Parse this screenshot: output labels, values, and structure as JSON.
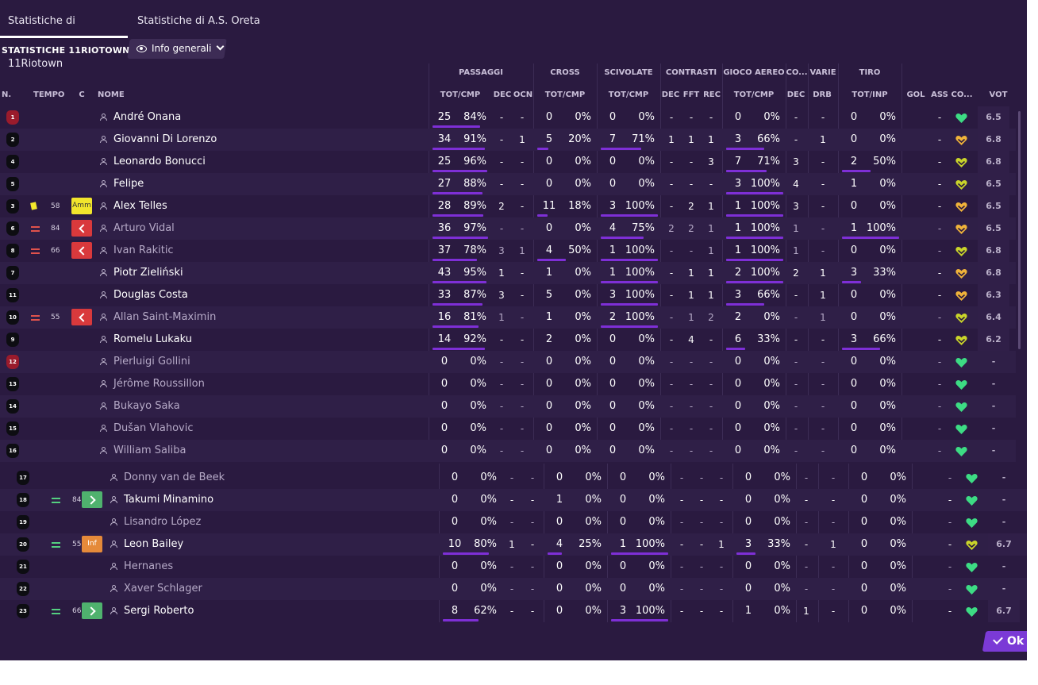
{
  "tabs": [
    "Statistiche di 11Riotown",
    "Statistiche di A.S. Oreta"
  ],
  "section_title": "STATISTICHE 11RIOTOWN",
  "view_button": "Info generali",
  "headers": {
    "groups": [
      "PASSAGGI",
      "CROSS",
      "SCIVOLATE",
      "CONTRASTI",
      "GIOCO AEREO",
      "CO...",
      "VARIE",
      "TIRO"
    ],
    "cols": [
      "N.",
      "TEMPO",
      "C",
      "NOME",
      "TOT/CMP",
      "DEC",
      "OCN",
      "TOT/CMP",
      "TOT/CMP",
      "DEC",
      "FFT",
      "REC",
      "TOT/CMP",
      "DEC",
      "DRB",
      "TOT/INP",
      "GOL",
      "ASS",
      "CO...",
      "VOT"
    ]
  },
  "ok_label": "Ok",
  "colors": {
    "background": "#2a1a40",
    "accent": "#7e2fd6",
    "heart_green": "#3ddc84",
    "heart_yellow": "#c9d42a",
    "heart_orange": "#f0b33a"
  },
  "players": [
    {
      "num": "1",
      "gk": true,
      "time": "",
      "card": "",
      "badge": "",
      "badge_text": "",
      "name": "André Onana",
      "active": true,
      "pas_t": "25",
      "pas_p": "84%",
      "pas_f": 0.84,
      "pdec": "-",
      "pocn": "-",
      "cr_t": "0",
      "cr_p": "0%",
      "cr_f": 0,
      "sc_t": "0",
      "sc_p": "0%",
      "sc_f": 0,
      "cdec": "-",
      "cfft": "-",
      "crec": "-",
      "ga_t": "0",
      "ga_p": "0%",
      "ga_f": 0,
      "codec": "-",
      "drb": "-",
      "ti_t": "0",
      "ti_p": "0%",
      "ti_f": 0,
      "gol": "",
      "ass": "-",
      "heart": "green",
      "vot": "6.5"
    },
    {
      "num": "2",
      "gk": false,
      "time": "",
      "card": "",
      "badge": "",
      "badge_text": "",
      "name": "Giovanni Di Lorenzo",
      "active": true,
      "pas_t": "34",
      "pas_p": "91%",
      "pas_f": 0.91,
      "pdec": "-",
      "pocn": "1",
      "cr_t": "5",
      "cr_p": "20%",
      "cr_f": 0.2,
      "sc_t": "7",
      "sc_p": "71%",
      "sc_f": 0.71,
      "cdec": "1",
      "cfft": "1",
      "crec": "1",
      "ga_t": "3",
      "ga_p": "66%",
      "ga_f": 0.66,
      "codec": "-",
      "drb": "1",
      "ti_t": "0",
      "ti_p": "0%",
      "ti_f": 0,
      "gol": "",
      "ass": "-",
      "heart": "orange",
      "vot": "6.8"
    },
    {
      "num": "4",
      "gk": false,
      "time": "",
      "card": "",
      "badge": "",
      "badge_text": "",
      "name": "Leonardo Bonucci",
      "active": true,
      "pas_t": "25",
      "pas_p": "96%",
      "pas_f": 0.96,
      "pdec": "-",
      "pocn": "-",
      "cr_t": "0",
      "cr_p": "0%",
      "cr_f": 0,
      "sc_t": "0",
      "sc_p": "0%",
      "sc_f": 0,
      "cdec": "-",
      "cfft": "-",
      "crec": "3",
      "ga_t": "7",
      "ga_p": "71%",
      "ga_f": 0.71,
      "codec": "3",
      "drb": "-",
      "ti_t": "2",
      "ti_p": "50%",
      "ti_f": 0.5,
      "gol": "",
      "ass": "-",
      "heart": "yellow",
      "vot": "6.8"
    },
    {
      "num": "5",
      "gk": false,
      "time": "",
      "card": "",
      "badge": "",
      "badge_text": "",
      "name": "Felipe",
      "active": true,
      "pas_t": "27",
      "pas_p": "88%",
      "pas_f": 0.88,
      "pdec": "-",
      "pocn": "-",
      "cr_t": "0",
      "cr_p": "0%",
      "cr_f": 0,
      "sc_t": "0",
      "sc_p": "0%",
      "sc_f": 0,
      "cdec": "-",
      "cfft": "-",
      "crec": "-",
      "ga_t": "3",
      "ga_p": "100%",
      "ga_f": 1,
      "codec": "4",
      "drb": "-",
      "ti_t": "1",
      "ti_p": "0%",
      "ti_f": 0,
      "gol": "",
      "ass": "-",
      "heart": "yellow",
      "vot": "6.5"
    },
    {
      "num": "3",
      "gk": false,
      "time": "58",
      "card": "yellow",
      "badge": "amm",
      "badge_text": "Amm",
      "name": "Alex Telles",
      "active": true,
      "pas_t": "28",
      "pas_p": "89%",
      "pas_f": 0.89,
      "pdec": "2",
      "pocn": "-",
      "cr_t": "11",
      "cr_p": "18%",
      "cr_f": 0.18,
      "sc_t": "3",
      "sc_p": "100%",
      "sc_f": 1,
      "cdec": "-",
      "cfft": "2",
      "crec": "1",
      "ga_t": "1",
      "ga_p": "100%",
      "ga_f": 1,
      "codec": "3",
      "drb": "-",
      "ti_t": "0",
      "ti_p": "0%",
      "ti_f": 0,
      "gol": "",
      "ass": "-",
      "heart": "orange",
      "vot": "6.5"
    },
    {
      "num": "6",
      "gk": false,
      "time": "84",
      "card": "out",
      "badge": "out",
      "badge_text": "",
      "name": "Arturo Vidal",
      "active": false,
      "pas_t": "36",
      "pas_p": "97%",
      "pas_f": 0.97,
      "pdec": "-",
      "pocn": "-",
      "cr_t": "0",
      "cr_p": "0%",
      "cr_f": 0,
      "sc_t": "4",
      "sc_p": "75%",
      "sc_f": 0.75,
      "cdec": "2",
      "cfft": "2",
      "crec": "1",
      "ga_t": "1",
      "ga_p": "100%",
      "ga_f": 1,
      "codec": "1",
      "drb": "-",
      "ti_t": "1",
      "ti_p": "100%",
      "ti_f": 1,
      "gol": "",
      "ass": "-",
      "heart": "orange",
      "vot": "6.5"
    },
    {
      "num": "8",
      "gk": false,
      "time": "66",
      "card": "out",
      "badge": "out",
      "badge_text": "",
      "name": "Ivan Rakitic",
      "active": false,
      "pas_t": "37",
      "pas_p": "78%",
      "pas_f": 0.78,
      "pdec": "3",
      "pocn": "1",
      "cr_t": "4",
      "cr_p": "50%",
      "cr_f": 0.5,
      "sc_t": "1",
      "sc_p": "100%",
      "sc_f": 1,
      "cdec": "-",
      "cfft": "-",
      "crec": "1",
      "ga_t": "1",
      "ga_p": "100%",
      "ga_f": 1,
      "codec": "1",
      "drb": "-",
      "ti_t": "0",
      "ti_p": "0%",
      "ti_f": 0,
      "gol": "",
      "ass": "-",
      "heart": "yellow",
      "vot": "6.8"
    },
    {
      "num": "7",
      "gk": false,
      "time": "",
      "card": "",
      "badge": "",
      "badge_text": "",
      "name": "Piotr Zieliński",
      "active": true,
      "pas_t": "43",
      "pas_p": "95%",
      "pas_f": 0.95,
      "pdec": "1",
      "pocn": "-",
      "cr_t": "1",
      "cr_p": "0%",
      "cr_f": 0,
      "sc_t": "1",
      "sc_p": "100%",
      "sc_f": 1,
      "cdec": "-",
      "cfft": "1",
      "crec": "1",
      "ga_t": "2",
      "ga_p": "100%",
      "ga_f": 1,
      "codec": "2",
      "drb": "1",
      "ti_t": "3",
      "ti_p": "33%",
      "ti_f": 0.33,
      "gol": "",
      "ass": "-",
      "heart": "orange",
      "vot": "6.8"
    },
    {
      "num": "11",
      "gk": false,
      "time": "",
      "card": "",
      "badge": "",
      "badge_text": "",
      "name": "Douglas Costa",
      "active": true,
      "pas_t": "33",
      "pas_p": "87%",
      "pas_f": 0.87,
      "pdec": "3",
      "pocn": "-",
      "cr_t": "5",
      "cr_p": "0%",
      "cr_f": 0,
      "sc_t": "3",
      "sc_p": "100%",
      "sc_f": 1,
      "cdec": "-",
      "cfft": "1",
      "crec": "1",
      "ga_t": "3",
      "ga_p": "66%",
      "ga_f": 0.66,
      "codec": "-",
      "drb": "1",
      "ti_t": "0",
      "ti_p": "0%",
      "ti_f": 0,
      "gol": "",
      "ass": "-",
      "heart": "orange",
      "vot": "6.3"
    },
    {
      "num": "10",
      "gk": false,
      "time": "55",
      "card": "out",
      "badge": "out",
      "badge_text": "",
      "name": "Allan Saint-Maximin",
      "active": false,
      "pas_t": "16",
      "pas_p": "81%",
      "pas_f": 0.81,
      "pdec": "1",
      "pocn": "-",
      "cr_t": "1",
      "cr_p": "0%",
      "cr_f": 0,
      "sc_t": "2",
      "sc_p": "100%",
      "sc_f": 1,
      "cdec": "-",
      "cfft": "1",
      "crec": "2",
      "ga_t": "2",
      "ga_p": "0%",
      "ga_f": 0,
      "codec": "-",
      "drb": "1",
      "ti_t": "0",
      "ti_p": "0%",
      "ti_f": 0,
      "gol": "",
      "ass": "-",
      "heart": "yellow",
      "vot": "6.4"
    },
    {
      "num": "9",
      "gk": false,
      "time": "",
      "card": "",
      "badge": "",
      "badge_text": "",
      "name": "Romelu Lukaku",
      "active": true,
      "pas_t": "14",
      "pas_p": "92%",
      "pas_f": 0.92,
      "pdec": "-",
      "pocn": "-",
      "cr_t": "2",
      "cr_p": "0%",
      "cr_f": 0,
      "sc_t": "0",
      "sc_p": "0%",
      "sc_f": 0,
      "cdec": "-",
      "cfft": "4",
      "crec": "-",
      "ga_t": "6",
      "ga_p": "33%",
      "ga_f": 0.33,
      "codec": "-",
      "drb": "-",
      "ti_t": "3",
      "ti_p": "66%",
      "ti_f": 0.66,
      "gol": "",
      "ass": "-",
      "heart": "yellow",
      "vot": "6.2"
    },
    {
      "num": "12",
      "gk": true,
      "time": "",
      "card": "",
      "badge": "",
      "badge_text": "",
      "name": "Pierluigi Gollini",
      "active": false,
      "pas_t": "0",
      "pas_p": "0%",
      "pas_f": 0,
      "pdec": "-",
      "pocn": "-",
      "cr_t": "0",
      "cr_p": "0%",
      "cr_f": 0,
      "sc_t": "0",
      "sc_p": "0%",
      "sc_f": 0,
      "cdec": "-",
      "cfft": "-",
      "crec": "-",
      "ga_t": "0",
      "ga_p": "0%",
      "ga_f": 0,
      "codec": "-",
      "drb": "-",
      "ti_t": "0",
      "ti_p": "0%",
      "ti_f": 0,
      "gol": "",
      "ass": "-",
      "heart": "green",
      "vot": "-"
    },
    {
      "num": "13",
      "gk": false,
      "time": "",
      "card": "",
      "badge": "",
      "badge_text": "",
      "name": "Jérôme Roussillon",
      "active": false,
      "pas_t": "0",
      "pas_p": "0%",
      "pas_f": 0,
      "pdec": "-",
      "pocn": "-",
      "cr_t": "0",
      "cr_p": "0%",
      "cr_f": 0,
      "sc_t": "0",
      "sc_p": "0%",
      "sc_f": 0,
      "cdec": "-",
      "cfft": "-",
      "crec": "-",
      "ga_t": "0",
      "ga_p": "0%",
      "ga_f": 0,
      "codec": "-",
      "drb": "-",
      "ti_t": "0",
      "ti_p": "0%",
      "ti_f": 0,
      "gol": "",
      "ass": "-",
      "heart": "green",
      "vot": "-"
    },
    {
      "num": "14",
      "gk": false,
      "time": "",
      "card": "",
      "badge": "",
      "badge_text": "",
      "name": "Bukayo Saka",
      "active": false,
      "pas_t": "0",
      "pas_p": "0%",
      "pas_f": 0,
      "pdec": "-",
      "pocn": "-",
      "cr_t": "0",
      "cr_p": "0%",
      "cr_f": 0,
      "sc_t": "0",
      "sc_p": "0%",
      "sc_f": 0,
      "cdec": "-",
      "cfft": "-",
      "crec": "-",
      "ga_t": "0",
      "ga_p": "0%",
      "ga_f": 0,
      "codec": "-",
      "drb": "-",
      "ti_t": "0",
      "ti_p": "0%",
      "ti_f": 0,
      "gol": "",
      "ass": "-",
      "heart": "green",
      "vot": "-"
    },
    {
      "num": "15",
      "gk": false,
      "time": "",
      "card": "",
      "badge": "",
      "badge_text": "",
      "name": "Dušan Vlahovic",
      "active": false,
      "pas_t": "0",
      "pas_p": "0%",
      "pas_f": 0,
      "pdec": "-",
      "pocn": "-",
      "cr_t": "0",
      "cr_p": "0%",
      "cr_f": 0,
      "sc_t": "0",
      "sc_p": "0%",
      "sc_f": 0,
      "cdec": "-",
      "cfft": "-",
      "crec": "-",
      "ga_t": "0",
      "ga_p": "0%",
      "ga_f": 0,
      "codec": "-",
      "drb": "-",
      "ti_t": "0",
      "ti_p": "0%",
      "ti_f": 0,
      "gol": "",
      "ass": "-",
      "heart": "green",
      "vot": "-"
    },
    {
      "num": "16",
      "gk": false,
      "time": "",
      "card": "",
      "badge": "",
      "badge_text": "",
      "name": "William Saliba",
      "active": false,
      "pas_t": "0",
      "pas_p": "0%",
      "pas_f": 0,
      "pdec": "-",
      "pocn": "-",
      "cr_t": "0",
      "cr_p": "0%",
      "cr_f": 0,
      "sc_t": "0",
      "sc_p": "0%",
      "sc_f": 0,
      "cdec": "-",
      "cfft": "-",
      "crec": "-",
      "ga_t": "0",
      "ga_p": "0%",
      "ga_f": 0,
      "codec": "-",
      "drb": "-",
      "ti_t": "0",
      "ti_p": "0%",
      "ti_f": 0,
      "gol": "",
      "ass": "-",
      "heart": "green",
      "vot": "-"
    },
    {
      "num": "17",
      "gk": false,
      "time": "",
      "card": "",
      "badge": "",
      "badge_text": "",
      "name": "Donny van de Beek",
      "active": false,
      "pas_t": "0",
      "pas_p": "0%",
      "pas_f": 0,
      "pdec": "-",
      "pocn": "-",
      "cr_t": "0",
      "cr_p": "0%",
      "cr_f": 0,
      "sc_t": "0",
      "sc_p": "0%",
      "sc_f": 0,
      "cdec": "-",
      "cfft": "-",
      "crec": "-",
      "ga_t": "0",
      "ga_p": "0%",
      "ga_f": 0,
      "codec": "-",
      "drb": "-",
      "ti_t": "0",
      "ti_p": "0%",
      "ti_f": 0,
      "gol": "",
      "ass": "-",
      "heart": "green",
      "vot": "-"
    },
    {
      "num": "18",
      "gk": false,
      "time": "84",
      "card": "in",
      "badge": "in",
      "badge_text": "",
      "name": "Takumi Minamino",
      "active": true,
      "pas_t": "0",
      "pas_p": "0%",
      "pas_f": 0,
      "pdec": "-",
      "pocn": "-",
      "cr_t": "1",
      "cr_p": "0%",
      "cr_f": 0,
      "sc_t": "0",
      "sc_p": "0%",
      "sc_f": 0,
      "cdec": "-",
      "cfft": "-",
      "crec": "-",
      "ga_t": "0",
      "ga_p": "0%",
      "ga_f": 0,
      "codec": "-",
      "drb": "-",
      "ti_t": "0",
      "ti_p": "0%",
      "ti_f": 0,
      "gol": "",
      "ass": "-",
      "heart": "green",
      "vot": "-"
    },
    {
      "num": "19",
      "gk": false,
      "time": "",
      "card": "",
      "badge": "",
      "badge_text": "",
      "name": "Lisandro López",
      "active": false,
      "pas_t": "0",
      "pas_p": "0%",
      "pas_f": 0,
      "pdec": "-",
      "pocn": "-",
      "cr_t": "0",
      "cr_p": "0%",
      "cr_f": 0,
      "sc_t": "0",
      "sc_p": "0%",
      "sc_f": 0,
      "cdec": "-",
      "cfft": "-",
      "crec": "-",
      "ga_t": "0",
      "ga_p": "0%",
      "ga_f": 0,
      "codec": "-",
      "drb": "-",
      "ti_t": "0",
      "ti_p": "0%",
      "ti_f": 0,
      "gol": "",
      "ass": "-",
      "heart": "green",
      "vot": "-"
    },
    {
      "num": "20",
      "gk": false,
      "time": "55",
      "card": "in",
      "badge": "inf",
      "badge_text": "Inf",
      "name": "Leon Bailey",
      "active": true,
      "pas_t": "10",
      "pas_p": "80%",
      "pas_f": 0.8,
      "pdec": "1",
      "pocn": "-",
      "cr_t": "4",
      "cr_p": "25%",
      "cr_f": 0.25,
      "sc_t": "1",
      "sc_p": "100%",
      "sc_f": 1,
      "cdec": "-",
      "cfft": "-",
      "crec": "1",
      "ga_t": "3",
      "ga_p": "33%",
      "ga_f": 0.33,
      "codec": "-",
      "drb": "1",
      "ti_t": "0",
      "ti_p": "0%",
      "ti_f": 0,
      "gol": "",
      "ass": "-",
      "heart": "yellow",
      "vot": "6.7"
    },
    {
      "num": "21",
      "gk": false,
      "time": "",
      "card": "",
      "badge": "",
      "badge_text": "",
      "name": "Hernanes",
      "active": false,
      "pas_t": "0",
      "pas_p": "0%",
      "pas_f": 0,
      "pdec": "-",
      "pocn": "-",
      "cr_t": "0",
      "cr_p": "0%",
      "cr_f": 0,
      "sc_t": "0",
      "sc_p": "0%",
      "sc_f": 0,
      "cdec": "-",
      "cfft": "-",
      "crec": "-",
      "ga_t": "0",
      "ga_p": "0%",
      "ga_f": 0,
      "codec": "-",
      "drb": "-",
      "ti_t": "0",
      "ti_p": "0%",
      "ti_f": 0,
      "gol": "",
      "ass": "-",
      "heart": "green",
      "vot": "-"
    },
    {
      "num": "22",
      "gk": false,
      "time": "",
      "card": "",
      "badge": "",
      "badge_text": "",
      "name": "Xaver Schlager",
      "active": false,
      "pas_t": "0",
      "pas_p": "0%",
      "pas_f": 0,
      "pdec": "-",
      "pocn": "-",
      "cr_t": "0",
      "cr_p": "0%",
      "cr_f": 0,
      "sc_t": "0",
      "sc_p": "0%",
      "sc_f": 0,
      "cdec": "-",
      "cfft": "-",
      "crec": "-",
      "ga_t": "0",
      "ga_p": "0%",
      "ga_f": 0,
      "codec": "-",
      "drb": "-",
      "ti_t": "0",
      "ti_p": "0%",
      "ti_f": 0,
      "gol": "",
      "ass": "-",
      "heart": "green",
      "vot": "-"
    },
    {
      "num": "23",
      "gk": false,
      "time": "66",
      "card": "in",
      "badge": "in",
      "badge_text": "",
      "name": "Sergi Roberto",
      "active": true,
      "pas_t": "8",
      "pas_p": "62%",
      "pas_f": 0.62,
      "pdec": "-",
      "pocn": "-",
      "cr_t": "0",
      "cr_p": "0%",
      "cr_f": 0,
      "sc_t": "3",
      "sc_p": "100%",
      "sc_f": 1,
      "cdec": "-",
      "cfft": "-",
      "crec": "-",
      "ga_t": "1",
      "ga_p": "0%",
      "ga_f": 0,
      "codec": "1",
      "drb": "-",
      "ti_t": "0",
      "ti_p": "0%",
      "ti_f": 0,
      "gol": "",
      "ass": "-",
      "heart": "green",
      "vot": "6.7"
    }
  ]
}
